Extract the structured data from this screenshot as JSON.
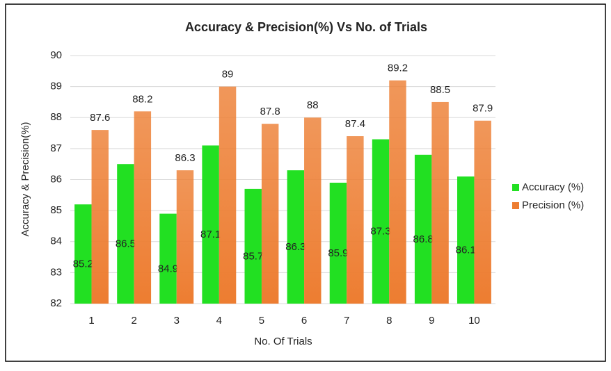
{
  "chart_data": {
    "type": "bar",
    "title": "Accuracy & Precision(%) Vs No. of Trials",
    "x_label": "No. Of Trials",
    "y_label": "Accuracy & Precision(%)",
    "categories": [
      "1",
      "2",
      "3",
      "4",
      "5",
      "6",
      "7",
      "8",
      "9",
      "10"
    ],
    "series": [
      {
        "name": "Accuracy (%)",
        "color": "#22e022",
        "values": [
          85.2,
          86.5,
          84.9,
          87.1,
          85.7,
          86.3,
          85.9,
          87.3,
          86.8,
          86.1
        ]
      },
      {
        "name": "Precision (%)",
        "color": "#ed7d31",
        "values": [
          87.6,
          88.2,
          86.3,
          89,
          87.8,
          88,
          87.4,
          89.2,
          88.5,
          87.9
        ]
      }
    ],
    "ylim": [
      82,
      90
    ],
    "yticks": [
      82,
      83,
      84,
      85,
      86,
      87,
      88,
      89,
      90
    ],
    "grid": true,
    "legend": "right"
  }
}
